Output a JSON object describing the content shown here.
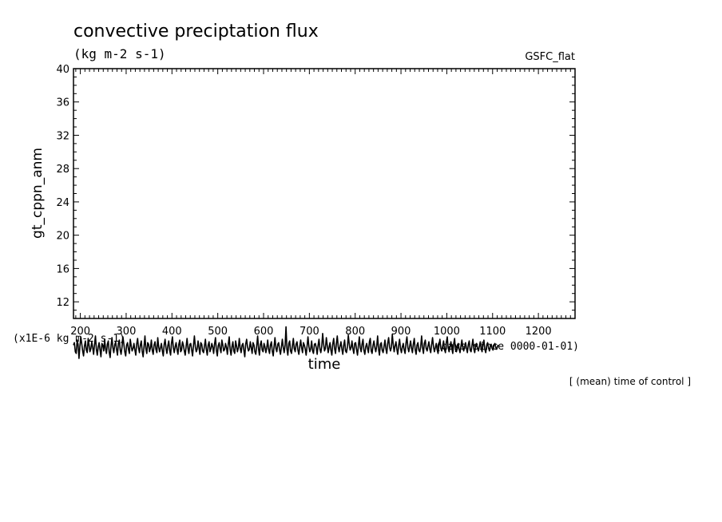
{
  "chart_data": {
    "type": "line",
    "title": "convective preciptation flux",
    "subtitle": "(kg m-2 s-1)",
    "corner_label": "GSFC_flat",
    "xlabel": "time",
    "x_units": "(days since 0000-01-01)",
    "ylabel": "gt_cppn_anm",
    "y_scale_note": "(x1E-6 kg m-2 s-1)",
    "annotation": "[ (mean) time of control ]",
    "xlim": [
      185,
      1280
    ],
    "ylim": [
      10,
      40
    ],
    "x_ticks": [
      200,
      300,
      400,
      500,
      600,
      700,
      800,
      900,
      1000,
      1100,
      1200
    ],
    "y_ticks": [
      12,
      16,
      20,
      24,
      28,
      32,
      36,
      40
    ],
    "grid": false,
    "series": [
      {
        "color": "#000000",
        "x_start": 185,
        "x_step": 2,
        "values": [
          6.8,
          7.1,
          6.0,
          5.8,
          7.4,
          6.9,
          5.2,
          6.6,
          7.8,
          7.0,
          6.1,
          5.5,
          6.7,
          7.3,
          6.2,
          5.9,
          7.6,
          6.8,
          6.0,
          6.4,
          7.2,
          6.5,
          5.7,
          6.9,
          7.9,
          6.3,
          5.6,
          6.6,
          7.1,
          6.2,
          5.4,
          7.0,
          6.8,
          6.1,
          7.5,
          6.4,
          5.8,
          6.9,
          7.3,
          6.0,
          5.3,
          6.7,
          7.7,
          6.5,
          5.9,
          6.8,
          7.2,
          6.3,
          5.6,
          7.0,
          7.4,
          6.2,
          5.7,
          6.6,
          7.8,
          6.9,
          6.0,
          5.5,
          6.8,
          7.1,
          6.3,
          5.8,
          7.5,
          6.7,
          6.1,
          6.4,
          7.0,
          6.2,
          5.6,
          6.9,
          7.6,
          6.5,
          5.9,
          6.8,
          7.3,
          6.1,
          5.4,
          6.6,
          7.9,
          6.4,
          5.8,
          7.1,
          6.9,
          6.0,
          6.5,
          7.4,
          6.2,
          5.7,
          6.8,
          7.2,
          6.3,
          5.9,
          7.7,
          6.6,
          6.0,
          6.5,
          7.0,
          6.1,
          5.5,
          6.9,
          7.5,
          6.4,
          5.8,
          6.7,
          7.3,
          6.2,
          5.6,
          7.0,
          7.8,
          6.5,
          5.9,
          6.6,
          7.1,
          6.3,
          5.7,
          6.9,
          7.4,
          6.0,
          6.2,
          7.2,
          6.8,
          6.1,
          5.6,
          6.7,
          7.6,
          6.4,
          5.8,
          6.9,
          7.0,
          6.2,
          5.5,
          6.8,
          7.9,
          6.6,
          6.0,
          6.3,
          7.3,
          6.5,
          5.7,
          7.1,
          6.9,
          6.1,
          5.9,
          6.7,
          7.5,
          6.3,
          5.6,
          6.8,
          7.2,
          6.0,
          6.4,
          7.0,
          6.6,
          5.8,
          6.9,
          7.7,
          6.2,
          5.5,
          6.7,
          7.1,
          6.4,
          5.9,
          7.4,
          6.8,
          6.1,
          6.3,
          7.0,
          6.5,
          5.7,
          6.9,
          7.8,
          6.3,
          5.6,
          6.6,
          7.2,
          6.1,
          5.8,
          7.3,
          6.7,
          6.0,
          6.5,
          7.6,
          6.4,
          5.9,
          6.8,
          7.0,
          6.2,
          5.4,
          6.9,
          7.5,
          6.6,
          6.1,
          6.3,
          7.2,
          6.5,
          5.8,
          7.1,
          6.8,
          6.0,
          5.7,
          6.7,
          7.9,
          6.4,
          5.6,
          6.9,
          7.3,
          6.2,
          6.0,
          7.0,
          6.6,
          5.9,
          6.5,
          7.4,
          6.3,
          5.8,
          6.8,
          7.2,
          6.1,
          5.5,
          6.7,
          7.7,
          6.4,
          6.0,
          6.9,
          7.1,
          6.2,
          5.7,
          6.6,
          7.5,
          6.5,
          5.9,
          6.8,
          9.0,
          6.3,
          5.6,
          7.0,
          7.3,
          6.1,
          5.8,
          6.7,
          7.6,
          6.4,
          6.0,
          6.9,
          7.2,
          6.2,
          5.7,
          6.6,
          7.4,
          6.5,
          5.9,
          7.1,
          6.8,
          6.3,
          5.6,
          6.7,
          7.8,
          6.6,
          6.0,
          6.4,
          7.3,
          6.1,
          5.8,
          6.9,
          7.0,
          6.5,
          5.7,
          6.8,
          7.5,
          6.3,
          5.9,
          6.6,
          8.2,
          7.0,
          6.1,
          6.4,
          7.7,
          6.8,
          5.9,
          6.5,
          7.1,
          6.2,
          5.6,
          6.9,
          7.6,
          6.4,
          5.8,
          7.0,
          7.9,
          6.6,
          6.0,
          6.7,
          7.2,
          6.3,
          5.7,
          6.8,
          7.4,
          6.1,
          5.9,
          6.6,
          8.0,
          6.9,
          6.2,
          6.5,
          7.3,
          6.4,
          5.8,
          7.0,
          7.1,
          6.3,
          5.6,
          6.7,
          7.8,
          6.5,
          6.0,
          6.9,
          7.5,
          6.2,
          5.7,
          6.6,
          7.0,
          6.4,
          5.9,
          7.2,
          7.6,
          6.1,
          5.8,
          6.8,
          7.3,
          6.5,
          6.0,
          6.7,
          7.9,
          6.3,
          5.6,
          6.9,
          7.1,
          6.2,
          5.9,
          6.6,
          7.4,
          6.4,
          5.8,
          7.0,
          7.7,
          6.6,
          6.1,
          6.5,
          8.1,
          6.9,
          6.0,
          6.7,
          7.2,
          6.3,
          5.7,
          6.8,
          7.5,
          6.4,
          5.9,
          6.6,
          7.0,
          6.2,
          5.8,
          7.1,
          7.8,
          6.5,
          6.0,
          6.7,
          7.3,
          6.4,
          5.9,
          6.9,
          7.6,
          6.3,
          5.7,
          6.8,
          7.1,
          6.2,
          6.0,
          6.6,
          7.9,
          6.5,
          5.8,
          7.0,
          7.4,
          6.4,
          6.1,
          6.7,
          7.2,
          6.3,
          5.9,
          6.9,
          7.7,
          6.6,
          6.0,
          6.5,
          7.0,
          6.2,
          5.8,
          6.8,
          7.5,
          6.4,
          6.1,
          6.7,
          7.3,
          6.3,
          5.9,
          7.1,
          7.8,
          6.5,
          6.0,
          6.6,
          7.2,
          6.4,
          5.8,
          6.9,
          7.6,
          6.2,
          6.0,
          6.8,
          7.0,
          6.3,
          5.9,
          6.7,
          7.4,
          6.5,
          6.1,
          6.6,
          7.1,
          6.4,
          5.9,
          6.9,
          7.3,
          6.2,
          6.0,
          6.8,
          7.5,
          6.3,
          5.9,
          6.7,
          7.0,
          6.5,
          6.1,
          6.6,
          7.2,
          6.4,
          6.0,
          6.8,
          7.4,
          6.3,
          5.9,
          6.7,
          7.1,
          6.5,
          6.1,
          6.6,
          6.9,
          6.4,
          6.2,
          6.8,
          7.0,
          6.5,
          6.3,
          6.7,
          6.8
        ]
      }
    ]
  }
}
